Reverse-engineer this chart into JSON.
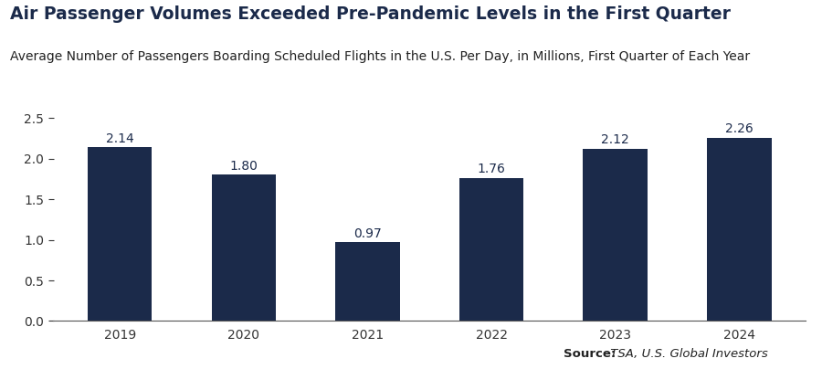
{
  "title": "Air Passenger Volumes Exceeded Pre-Pandemic Levels in the First Quarter",
  "subtitle": "Average Number of Passengers Boarding Scheduled Flights in the U.S. Per Day, in Millions, First Quarter of Each Year",
  "source": "Source: TSA, U.S. Global Investors",
  "categories": [
    "2019",
    "2020",
    "2021",
    "2022",
    "2023",
    "2024"
  ],
  "values": [
    2.14,
    1.8,
    0.97,
    1.76,
    2.12,
    2.26
  ],
  "bar_color": "#1b2a4a",
  "title_color": "#1b2a4a",
  "subtitle_color": "#222222",
  "label_color": "#1b2a4a",
  "source_bold": "Source:",
  "source_regular": " TSA, U.S. Global Investors",
  "source_color": "#222222",
  "ylim": [
    0,
    2.5
  ],
  "yticks": [
    0,
    0.5,
    1.0,
    1.5,
    2.0,
    2.5
  ],
  "title_fontsize": 13.5,
  "subtitle_fontsize": 10,
  "bar_label_fontsize": 10,
  "tick_fontsize": 10,
  "source_fontsize": 9.5,
  "bar_width": 0.52
}
